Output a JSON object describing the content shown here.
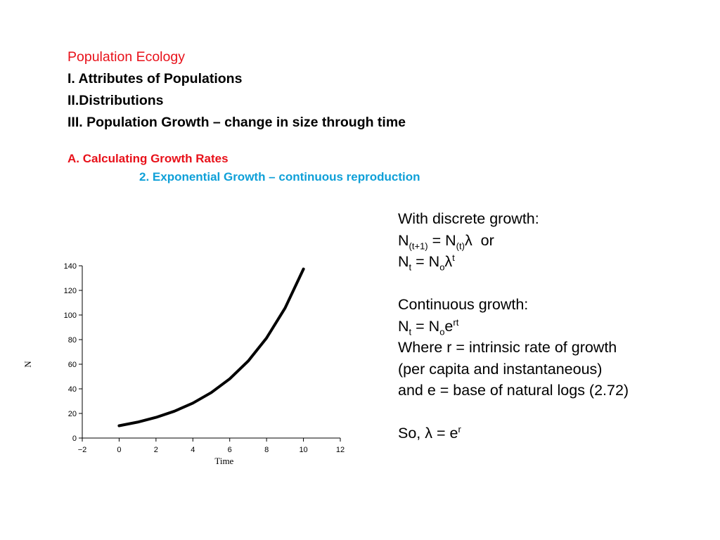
{
  "outline": {
    "course_title": "Population Ecology",
    "item_1": "I. Attributes of Populations",
    "item_2": "II.Distributions",
    "item_3": "III. Population Growth – change in size through time",
    "section_a": "A. Calculating Growth Rates",
    "subsection_2": "2. Exponential Growth – continuous reproduction"
  },
  "colors": {
    "heading_red": "#e8111a",
    "subheading_blue": "#0fa0d8",
    "curve": "#000000"
  },
  "notes": {
    "discrete_heading": "With discrete growth:",
    "eq1": {
      "n": "N",
      "sub1": "(t+1)",
      "mid": " = N",
      "sub2": "(t)",
      "tail": "λ  or"
    },
    "eq2": {
      "n": "N",
      "sub1": "t",
      "mid": " = N",
      "sub2": "o",
      "tail": "λ",
      "sup": "t"
    },
    "continuous_heading": "Continuous growth:",
    "eq3": {
      "n": "N",
      "sub1": "t",
      "mid": " = N",
      "sub2": "o",
      "tail": "e",
      "sup": "rt"
    },
    "where_line": "Where r = intrinsic rate of growth",
    "per_capita_line": "(per capita and instantaneous)",
    "e_line": "and e = base of natural logs (2.72)",
    "so_line": {
      "text": "So, λ = e",
      "sup": "r"
    }
  },
  "chart_data": {
    "type": "line",
    "xlabel": "Time",
    "ylabel": "N",
    "xlim": [
      -2,
      12
    ],
    "ylim": [
      0,
      140
    ],
    "xticks": [
      -2,
      0,
      2,
      4,
      6,
      8,
      10,
      12
    ],
    "yticks": [
      0,
      20,
      40,
      60,
      80,
      100,
      120,
      140
    ],
    "grid": false,
    "series": [
      {
        "x": [
          0,
          1,
          2,
          3,
          4,
          5,
          6,
          7,
          8,
          9,
          10
        ],
        "values": [
          10,
          12.9,
          16.8,
          21.8,
          28.4,
          37,
          48.1,
          62.5,
          81.3,
          105.6,
          137.4
        ]
      }
    ]
  }
}
